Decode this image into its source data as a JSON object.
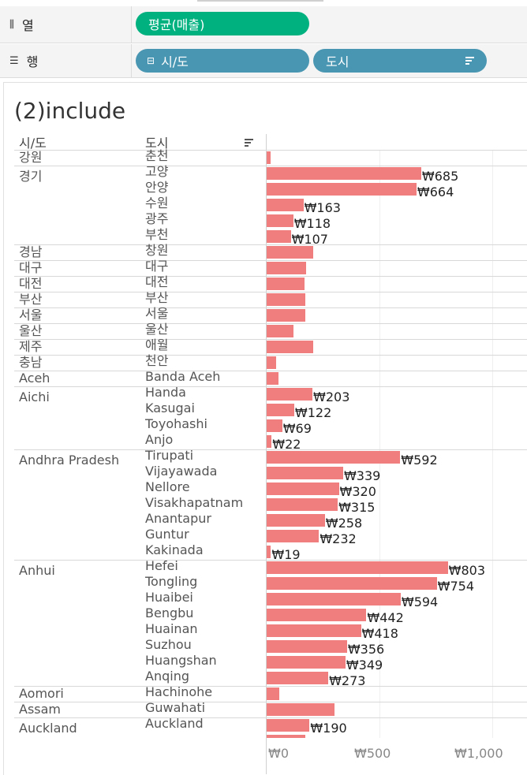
{
  "shelves": {
    "columns": {
      "label": "열",
      "icon": "columns-icon",
      "pill": "평균(매출)",
      "pill_color": "#00b180"
    },
    "rows": {
      "label": "행",
      "icon": "rows-icon",
      "pills": [
        {
          "text": "시/도",
          "icon": "collapse-icon"
        },
        {
          "text": "도시",
          "icon": "sort-icon"
        }
      ],
      "pill_color": "#4996b2"
    }
  },
  "sheet": {
    "title": "(2)include",
    "header_province": "시/도",
    "header_city": "도시"
  },
  "chart_data": {
    "type": "bar",
    "orientation": "horizontal",
    "bar_color": "#f07e7e",
    "xlim": [
      0,
      1150
    ],
    "x_ticks": [
      "₩0",
      "₩500",
      "₩1,000"
    ],
    "groups": [
      {
        "province": "강원",
        "rows": [
          {
            "city": "춘천",
            "value": 18
          }
        ]
      },
      {
        "province": "경기",
        "rows": [
          {
            "city": "고양",
            "value": 685,
            "label": "₩685"
          },
          {
            "city": "안양",
            "value": 664,
            "label": "₩664"
          },
          {
            "city": "수원",
            "value": 163,
            "label": "₩163"
          },
          {
            "city": "광주",
            "value": 118,
            "label": "₩118"
          },
          {
            "city": "부천",
            "value": 107,
            "label": "₩107"
          }
        ]
      },
      {
        "province": "경남",
        "rows": [
          {
            "city": "창원",
            "value": 205
          }
        ]
      },
      {
        "province": "대구",
        "rows": [
          {
            "city": "대구",
            "value": 176
          }
        ]
      },
      {
        "province": "대전",
        "rows": [
          {
            "city": "대전",
            "value": 168
          }
        ]
      },
      {
        "province": "부산",
        "rows": [
          {
            "city": "부산",
            "value": 172
          }
        ]
      },
      {
        "province": "서울",
        "rows": [
          {
            "city": "서울",
            "value": 172
          }
        ]
      },
      {
        "province": "울산",
        "rows": [
          {
            "city": "울산",
            "value": 118
          }
        ]
      },
      {
        "province": "제주",
        "rows": [
          {
            "city": "애월",
            "value": 205
          }
        ]
      },
      {
        "province": "충남",
        "rows": [
          {
            "city": "천안",
            "value": 42
          }
        ]
      },
      {
        "province": "Aceh",
        "rows": [
          {
            "city": "Banda Aceh",
            "value": 52
          }
        ]
      },
      {
        "province": "Aichi",
        "rows": [
          {
            "city": "Handa",
            "value": 203,
            "label": "₩203"
          },
          {
            "city": "Kasugai",
            "value": 122,
            "label": "₩122"
          },
          {
            "city": "Toyohashi",
            "value": 69,
            "label": "₩69"
          },
          {
            "city": "Anjo",
            "value": 22,
            "label": "₩22"
          }
        ]
      },
      {
        "province": "Andhra Pradesh",
        "rows": [
          {
            "city": "Tirupati",
            "value": 592,
            "label": "₩592"
          },
          {
            "city": "Vijayawada",
            "value": 339,
            "label": "₩339"
          },
          {
            "city": "Nellore",
            "value": 320,
            "label": "₩320"
          },
          {
            "city": "Visakhapatnam",
            "value": 315,
            "label": "₩315"
          },
          {
            "city": "Anantapur",
            "value": 258,
            "label": "₩258"
          },
          {
            "city": "Guntur",
            "value": 232,
            "label": "₩232"
          },
          {
            "city": "Kakinada",
            "value": 19,
            "label": "₩19"
          }
        ]
      },
      {
        "province": "Anhui",
        "rows": [
          {
            "city": "Hefei",
            "value": 803,
            "label": "₩803"
          },
          {
            "city": "Tongling",
            "value": 754,
            "label": "₩754"
          },
          {
            "city": "Huaibei",
            "value": 594,
            "label": "₩594"
          },
          {
            "city": "Bengbu",
            "value": 442,
            "label": "₩442"
          },
          {
            "city": "Huainan",
            "value": 418,
            "label": "₩418"
          },
          {
            "city": "Suzhou",
            "value": 356,
            "label": "₩356"
          },
          {
            "city": "Huangshan",
            "value": 349,
            "label": "₩349"
          },
          {
            "city": "Anqing",
            "value": 273,
            "label": "₩273"
          }
        ]
      },
      {
        "province": "Aomori",
        "rows": [
          {
            "city": "Hachinohe",
            "value": 55
          }
        ]
      },
      {
        "province": "Assam",
        "rows": [
          {
            "city": "Guwahati",
            "value": 302
          }
        ]
      },
      {
        "province": "Auckland",
        "rows": [
          {
            "city": "Auckland",
            "value": 190,
            "label": "₩190"
          },
          {
            "city": "",
            "value": 170,
            "label": ""
          }
        ]
      }
    ]
  }
}
